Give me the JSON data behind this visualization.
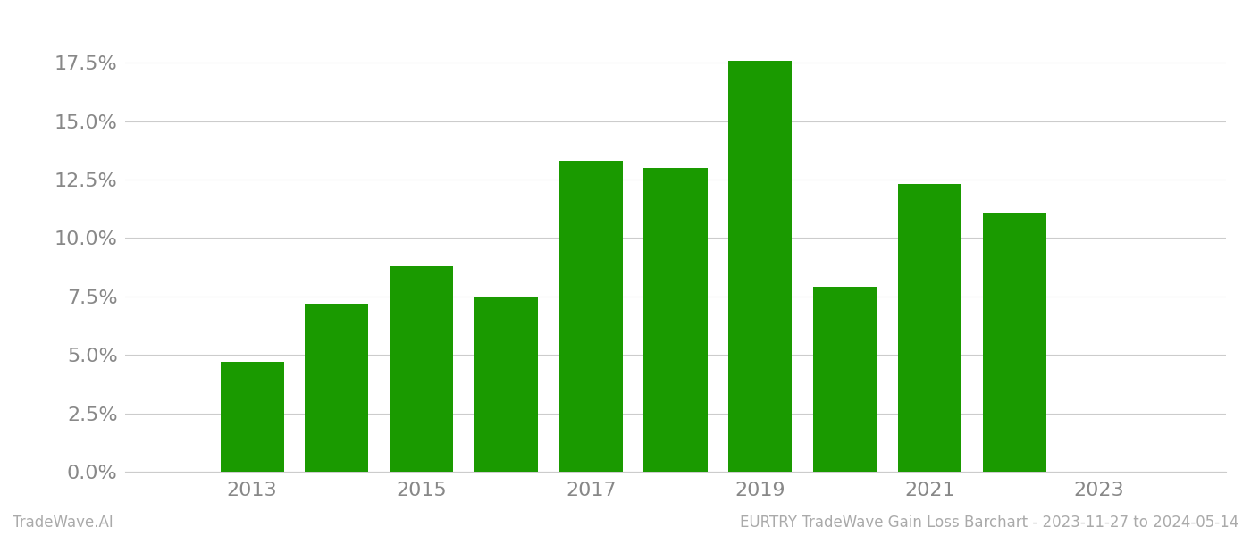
{
  "years": [
    2013,
    2014,
    2015,
    2016,
    2017,
    2018,
    2019,
    2020,
    2021,
    2022
  ],
  "values": [
    0.047,
    0.072,
    0.088,
    0.075,
    0.133,
    0.13,
    0.176,
    0.079,
    0.123,
    0.111
  ],
  "bar_color": "#1a9a00",
  "background_color": "#ffffff",
  "grid_color": "#cccccc",
  "tick_color": "#888888",
  "ytick_labels": [
    "0.0%",
    "2.5%",
    "5.0%",
    "7.5%",
    "10.0%",
    "12.5%",
    "15.0%",
    "17.5%"
  ],
  "ytick_values": [
    0.0,
    0.025,
    0.05,
    0.075,
    0.1,
    0.125,
    0.15,
    0.175
  ],
  "ylim": [
    0.0,
    0.195
  ],
  "xtick_labels": [
    "2013",
    "2015",
    "2017",
    "2019",
    "2021",
    "2023"
  ],
  "xtick_positions": [
    2013,
    2015,
    2017,
    2019,
    2021,
    2023
  ],
  "footer_left": "TradeWave.AI",
  "footer_right": "EURTRY TradeWave Gain Loss Barchart - 2023-11-27 to 2024-05-14",
  "footer_color": "#aaaaaa",
  "footer_fontsize": 12,
  "tick_fontsize": 16,
  "bar_width": 0.75,
  "xlim": [
    2011.5,
    2024.5
  ]
}
